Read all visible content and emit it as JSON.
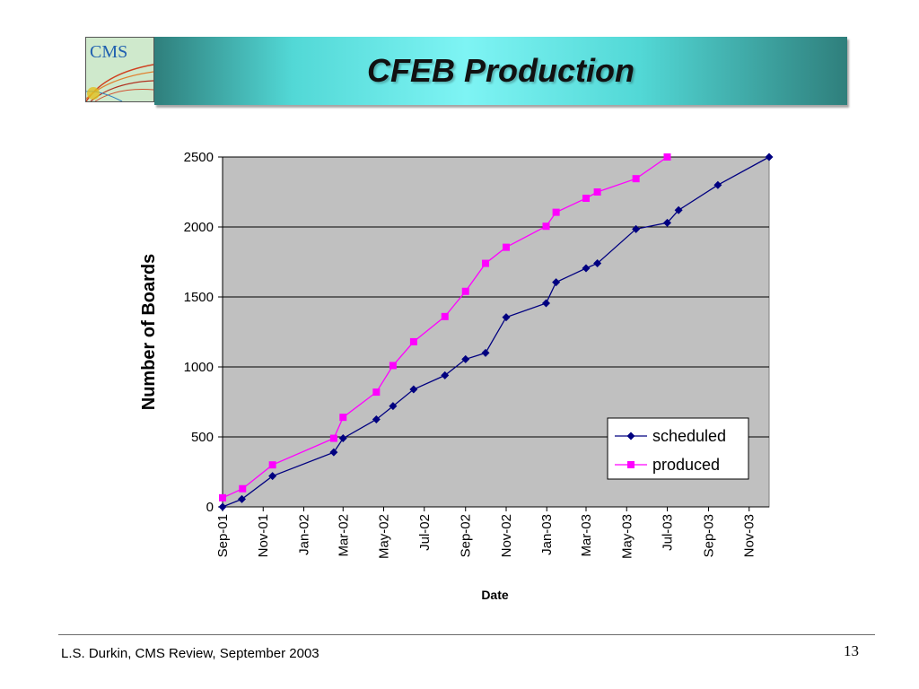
{
  "slide": {
    "title": "CFEB Production",
    "logo_text": "CMS",
    "footer": "L.S. Durkin,  CMS Review,  September 2003",
    "page_number": "13"
  },
  "chart_data": {
    "type": "line",
    "title": "",
    "xlabel": "Date",
    "ylabel": "Number of Boards",
    "x_axis": "date",
    "x_ticks": [
      "Sep-01",
      "Nov-01",
      "Jan-02",
      "Mar-02",
      "May-02",
      "Jul-02",
      "Sep-02",
      "Nov-02",
      "Jan-03",
      "Mar-03",
      "May-03",
      "Jul-03",
      "Sep-03",
      "Nov-03"
    ],
    "x_tick_dates": [
      "2001-09-01",
      "2001-11-01",
      "2002-01-01",
      "2002-03-01",
      "2002-05-01",
      "2002-07-01",
      "2002-09-01",
      "2002-11-01",
      "2003-01-01",
      "2003-03-01",
      "2003-05-01",
      "2003-07-01",
      "2003-09-01",
      "2003-11-01"
    ],
    "xlim": [
      "2001-09-01",
      "2003-12-01"
    ],
    "ylim": [
      0,
      2500
    ],
    "y_ticks": [
      0,
      500,
      1000,
      1500,
      2000,
      2500
    ],
    "grid": "horizontal",
    "plot_background": "#c0c0c0",
    "legend_position": "bottom-right",
    "series": [
      {
        "name": "scheduled",
        "color": "#000080",
        "marker": "diamond",
        "points": [
          [
            "2001-09-01",
            0
          ],
          [
            "2001-09-30",
            55
          ],
          [
            "2001-11-15",
            220
          ],
          [
            "2002-02-15",
            390
          ],
          [
            "2002-03-01",
            490
          ],
          [
            "2002-04-20",
            625
          ],
          [
            "2002-05-15",
            720
          ],
          [
            "2002-06-15",
            840
          ],
          [
            "2002-08-01",
            940
          ],
          [
            "2002-09-01",
            1055
          ],
          [
            "2002-10-01",
            1100
          ],
          [
            "2002-11-01",
            1355
          ],
          [
            "2002-12-31",
            1455
          ],
          [
            "2003-01-15",
            1605
          ],
          [
            "2003-03-01",
            1705
          ],
          [
            "2003-03-18",
            1740
          ],
          [
            "2003-05-15",
            1985
          ],
          [
            "2003-07-01",
            2030
          ],
          [
            "2003-07-18",
            2120
          ],
          [
            "2003-09-15",
            2300
          ],
          [
            "2003-12-01",
            2500
          ]
        ]
      },
      {
        "name": "produced",
        "color": "#ff00ff",
        "marker": "square",
        "points": [
          [
            "2001-09-01",
            65
          ],
          [
            "2001-10-01",
            130
          ],
          [
            "2001-11-15",
            300
          ],
          [
            "2002-02-15",
            490
          ],
          [
            "2002-03-01",
            640
          ],
          [
            "2002-04-20",
            820
          ],
          [
            "2002-05-15",
            1010
          ],
          [
            "2002-06-15",
            1180
          ],
          [
            "2002-08-01",
            1360
          ],
          [
            "2002-09-01",
            1540
          ],
          [
            "2002-10-01",
            1740
          ],
          [
            "2002-11-01",
            1855
          ],
          [
            "2002-12-31",
            2005
          ],
          [
            "2003-01-15",
            2105
          ],
          [
            "2003-03-01",
            2205
          ],
          [
            "2003-03-18",
            2250
          ],
          [
            "2003-05-15",
            2345
          ],
          [
            "2003-07-01",
            2500
          ]
        ]
      }
    ]
  }
}
